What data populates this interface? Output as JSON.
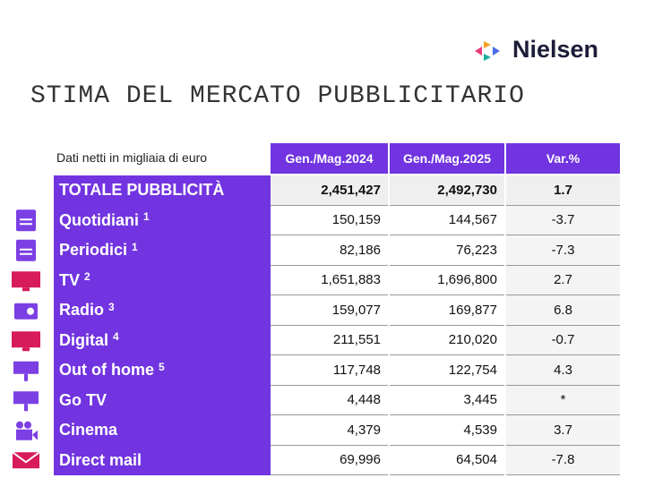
{
  "header": {
    "logo": "Nielsen",
    "title": "STIMA DEL MERCATO PUBBLICITARIO"
  },
  "table": {
    "note": "Dati netti in migliaia di euro",
    "columns": [
      "Gen./Mag.2024",
      "Gen./Mag.2025",
      "Var.%"
    ],
    "rows": [
      {
        "name": "TOTALE PUBBLICITÀ",
        "values": [
          "2,451,427",
          "2,492,730",
          "1.7"
        ]
      },
      {
        "name": "Quotidiani",
        "sup": "1",
        "values": [
          "150,159",
          "144,567",
          "-3.7"
        ]
      },
      {
        "name": "Periodici",
        "sup": "1",
        "values": [
          "82,186",
          "76,223",
          "-7.3"
        ]
      },
      {
        "name": "TV",
        "sup": "2",
        "values": [
          "1,651,883",
          "1,696,800",
          "2.7"
        ]
      },
      {
        "name": "Radio",
        "sup": "3",
        "values": [
          "159,077",
          "169,877",
          "6.8"
        ]
      },
      {
        "name": "Digital",
        "sup": "4",
        "values": [
          "211,551",
          "210,020",
          "-0.7"
        ]
      },
      {
        "name": "Out of home",
        "sup": "5",
        "values": [
          "117,748",
          "122,754",
          "4.3"
        ]
      },
      {
        "name": "Go TV",
        "values": [
          "4,448",
          "3,445",
          "*"
        ]
      },
      {
        "name": "Cinema",
        "values": [
          "4,379",
          "4,539",
          "3.7"
        ]
      },
      {
        "name": "Direct mail",
        "values": [
          "69,996",
          "64,504",
          "-7.8"
        ]
      }
    ]
  }
}
